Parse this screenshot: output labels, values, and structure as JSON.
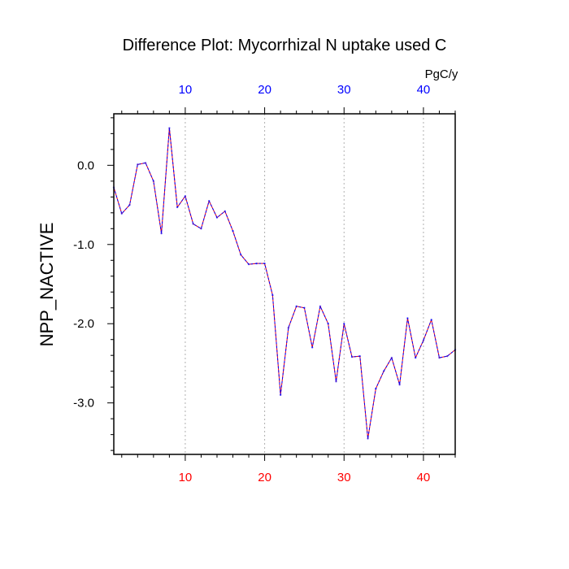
{
  "colors": {
    "background": "#ffffff",
    "frame": "#000000",
    "line_red": "#ff0000",
    "line_blue": "#0000ff",
    "top_tick_labels": "#0000ff",
    "bottom_tick_labels": "#ff0000",
    "gridline": "#b0b0b0",
    "text": "#000000"
  },
  "chart_data": {
    "type": "line",
    "title": "Difference Plot: Mycorrhizal N uptake used C",
    "ylabel": "NPP_NACTIVE",
    "xlabel": "",
    "top_axis_units": "PgC/y",
    "xlim": [
      1,
      44
    ],
    "ylim": [
      -3.65,
      0.65
    ],
    "x_ticks": [
      10,
      20,
      30,
      40
    ],
    "x_tick_labels": [
      "10",
      "20",
      "30",
      "40"
    ],
    "top_x_tick_labels": [
      "10",
      "20",
      "30",
      "40"
    ],
    "y_ticks": [
      0.0,
      -1.0,
      -2.0,
      -3.0
    ],
    "y_tick_labels": [
      "0.0",
      "-1.0",
      "-2.0",
      "-3.0"
    ],
    "grid": "vertical dashed lines at major x ticks",
    "line_style": "dashed red and blue overlay",
    "x": [
      1,
      2,
      3,
      4,
      5,
      6,
      7,
      8,
      9,
      10,
      11,
      12,
      13,
      14,
      15,
      16,
      17,
      18,
      19,
      20,
      21,
      22,
      23,
      24,
      25,
      26,
      27,
      28,
      29,
      30,
      31,
      32,
      33,
      34,
      35,
      36,
      37,
      38,
      39,
      40,
      41,
      42,
      43,
      44
    ],
    "values": [
      -0.28,
      -0.61,
      -0.5,
      0.01,
      0.03,
      -0.2,
      -0.86,
      0.47,
      -0.53,
      -0.39,
      -0.74,
      -0.8,
      -0.45,
      -0.66,
      -0.58,
      -0.83,
      -1.13,
      -1.25,
      -1.24,
      -1.24,
      -1.64,
      -2.9,
      -2.05,
      -1.78,
      -1.8,
      -2.3,
      -1.78,
      -2.0,
      -2.73,
      -2.0,
      -2.42,
      -2.41,
      -3.45,
      -2.82,
      -2.6,
      -2.43,
      -2.77,
      -1.93,
      -2.43,
      -2.21,
      -1.95,
      -2.43,
      -2.41,
      -2.33
    ]
  }
}
